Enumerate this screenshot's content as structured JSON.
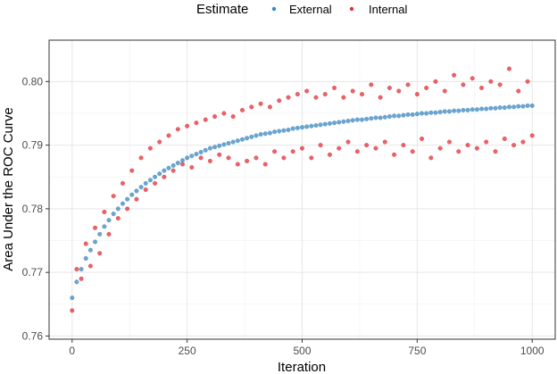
{
  "chart_data": {
    "type": "scatter",
    "xlabel": "Iteration",
    "ylabel": "Area Under the ROC Curve",
    "xlim": [
      -50,
      1050
    ],
    "ylim": [
      0.7595,
      0.8065
    ],
    "x_ticks": [
      0,
      250,
      500,
      750,
      1000
    ],
    "y_ticks": [
      0.76,
      0.77,
      0.78,
      0.79,
      0.8
    ],
    "x_tick_labels": [
      "0",
      "250",
      "500",
      "750",
      "1000"
    ],
    "y_tick_labels": [
      "0.76",
      "0.77",
      "0.78",
      "0.79",
      "0.80"
    ],
    "grid": true,
    "legend": {
      "title": "Estimate",
      "placement": "top",
      "entries": [
        "External",
        "Internal"
      ]
    },
    "colors": {
      "External": "#3A87C0",
      "Internal": "#E0303A"
    },
    "series": [
      {
        "name": "External",
        "x": [
          0,
          10,
          20,
          30,
          40,
          50,
          60,
          70,
          80,
          90,
          100,
          110,
          120,
          130,
          140,
          150,
          160,
          170,
          180,
          190,
          200,
          210,
          220,
          230,
          240,
          250,
          260,
          270,
          280,
          290,
          300,
          310,
          320,
          330,
          340,
          350,
          360,
          370,
          380,
          390,
          400,
          410,
          420,
          430,
          440,
          450,
          460,
          470,
          480,
          490,
          500,
          510,
          520,
          530,
          540,
          550,
          560,
          570,
          580,
          590,
          600,
          610,
          620,
          630,
          640,
          650,
          660,
          670,
          680,
          690,
          700,
          710,
          720,
          730,
          740,
          750,
          760,
          770,
          780,
          790,
          800,
          810,
          820,
          830,
          840,
          850,
          860,
          870,
          880,
          890,
          900,
          910,
          920,
          930,
          940,
          950,
          960,
          970,
          980,
          990,
          1000
        ],
        "y": [
          0.766,
          0.7685,
          0.7705,
          0.7722,
          0.7735,
          0.7748,
          0.776,
          0.7772,
          0.7782,
          0.7792,
          0.78,
          0.7808,
          0.7815,
          0.7822,
          0.7828,
          0.7834,
          0.784,
          0.7845,
          0.785,
          0.7855,
          0.786,
          0.7864,
          0.7868,
          0.7872,
          0.7876,
          0.788,
          0.7883,
          0.7886,
          0.7889,
          0.7892,
          0.7895,
          0.7897,
          0.7899,
          0.7901,
          0.7903,
          0.7905,
          0.7907,
          0.7909,
          0.7911,
          0.7913,
          0.7915,
          0.7917,
          0.7918,
          0.7919,
          0.7921,
          0.7922,
          0.7923,
          0.7924,
          0.7926,
          0.7927,
          0.7928,
          0.7929,
          0.793,
          0.7931,
          0.7932,
          0.7933,
          0.7934,
          0.7935,
          0.7936,
          0.7937,
          0.7938,
          0.7939,
          0.794,
          0.794,
          0.7941,
          0.7942,
          0.7943,
          0.7943,
          0.7944,
          0.7945,
          0.7946,
          0.7946,
          0.7947,
          0.7948,
          0.7948,
          0.7949,
          0.795,
          0.795,
          0.7951,
          0.7951,
          0.7952,
          0.7953,
          0.7953,
          0.7954,
          0.7954,
          0.7955,
          0.7955,
          0.7956,
          0.7956,
          0.7957,
          0.7957,
          0.7958,
          0.7958,
          0.7959,
          0.7959,
          0.796,
          0.796,
          0.7961,
          0.7961,
          0.7962,
          0.7962
        ]
      },
      {
        "name": "Internal",
        "x": [
          0,
          10,
          20,
          30,
          40,
          50,
          60,
          70,
          80,
          90,
          100,
          110,
          120,
          130,
          140,
          150,
          160,
          170,
          180,
          190,
          200,
          210,
          220,
          230,
          240,
          250,
          260,
          270,
          280,
          290,
          300,
          310,
          320,
          330,
          340,
          350,
          360,
          370,
          380,
          390,
          400,
          410,
          420,
          430,
          440,
          450,
          460,
          470,
          480,
          490,
          500,
          510,
          520,
          530,
          540,
          550,
          560,
          570,
          580,
          590,
          600,
          610,
          620,
          630,
          640,
          650,
          660,
          670,
          680,
          690,
          700,
          710,
          720,
          730,
          740,
          750,
          760,
          770,
          780,
          790,
          800,
          810,
          820,
          830,
          840,
          850,
          860,
          870,
          880,
          890,
          900,
          910,
          920,
          930,
          940,
          950,
          960,
          970,
          980,
          990,
          1000
        ],
        "y": [
          0.764,
          0.7705,
          0.769,
          0.7745,
          0.771,
          0.777,
          0.773,
          0.7795,
          0.776,
          0.782,
          0.7785,
          0.784,
          0.78,
          0.786,
          0.7815,
          0.788,
          0.783,
          0.7895,
          0.784,
          0.7905,
          0.785,
          0.7915,
          0.786,
          0.7925,
          0.787,
          0.793,
          0.7865,
          0.7935,
          0.788,
          0.794,
          0.7875,
          0.7945,
          0.7885,
          0.795,
          0.788,
          0.7945,
          0.787,
          0.7955,
          0.7875,
          0.796,
          0.788,
          0.7965,
          0.787,
          0.796,
          0.789,
          0.797,
          0.788,
          0.7975,
          0.789,
          0.798,
          0.7895,
          0.7985,
          0.788,
          0.7975,
          0.79,
          0.798,
          0.7885,
          0.799,
          0.7895,
          0.7975,
          0.7905,
          0.7985,
          0.789,
          0.798,
          0.79,
          0.7995,
          0.7895,
          0.7975,
          0.7905,
          0.799,
          0.7885,
          0.7985,
          0.79,
          0.7995,
          0.789,
          0.798,
          0.791,
          0.799,
          0.788,
          0.8,
          0.7895,
          0.7985,
          0.7905,
          0.801,
          0.789,
          0.7995,
          0.79,
          0.8005,
          0.7895,
          0.799,
          0.7905,
          0.8,
          0.789,
          0.7995,
          0.791,
          0.802,
          0.79,
          0.7985,
          0.7905,
          0.8,
          0.7915
        ]
      }
    ]
  }
}
